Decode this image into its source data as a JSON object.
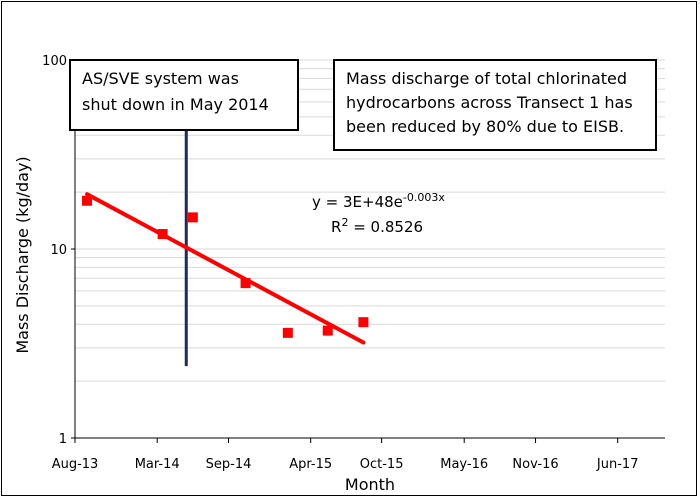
{
  "chart_data": {
    "type": "scatter",
    "xlabel": "Month",
    "ylabel": "Mass Discharge (kg/day)",
    "y_scale": "log",
    "ylim": [
      1,
      100
    ],
    "y_ticks": [
      {
        "value": 1,
        "label": "1"
      },
      {
        "value": 10,
        "label": "10"
      },
      {
        "value": 100,
        "label": "100"
      }
    ],
    "xlim": [
      "2013-08-01",
      "2017-10-01"
    ],
    "x_ticks": [
      {
        "date": "2013-08-01",
        "label": "Aug-13"
      },
      {
        "date": "2014-03-01",
        "label": "Mar-14"
      },
      {
        "date": "2014-09-01",
        "label": "Sep-14"
      },
      {
        "date": "2015-04-01",
        "label": "Apr-15"
      },
      {
        "date": "2015-10-01",
        "label": "Oct-15"
      },
      {
        "date": "2016-05-01",
        "label": "May-16"
      },
      {
        "date": "2016-11-01",
        "label": "Nov-16"
      },
      {
        "date": "2017-06-01",
        "label": "Jun-17"
      }
    ],
    "grid": {
      "horizontal": true,
      "vertical": false
    },
    "points": [
      {
        "x": "2013-09-01",
        "y": 18
      },
      {
        "x": "2014-03-15",
        "y": 12
      },
      {
        "x": "2014-06-01",
        "y": 14.7
      },
      {
        "x": "2014-10-15",
        "y": 6.6
      },
      {
        "x": "2015-02-01",
        "y": 3.6
      },
      {
        "x": "2015-05-15",
        "y": 3.7
      },
      {
        "x": "2015-08-15",
        "y": 4.1
      }
    ],
    "trendline": {
      "from": {
        "x": "2013-09-01",
        "y": 19.5
      },
      "to": {
        "x": "2015-08-15",
        "y": 3.2
      },
      "equation_main": "y = 3E+48e",
      "equation_exp": "-0.003x",
      "r2_prefix": "R",
      "r2_sup": "2",
      "r2_value": " = 0.8526"
    },
    "event_line": {
      "x": "2014-05-15",
      "y_from": 2.4,
      "y_to": 100
    },
    "annotations": [
      {
        "lines": [
          "AS/SVE system was",
          "shut down in May 2014"
        ]
      },
      {
        "lines": [
          "Mass discharge of total chlorinated",
          "hydrocarbons across Transect 1 has",
          "been reduced by 80% due to EISB."
        ]
      }
    ],
    "colors": {
      "points": "#ff0000",
      "trendline": "#ff0000",
      "event_line": "#1f2a5e",
      "grid": "#d9d9d9",
      "axis": "#000000"
    }
  }
}
